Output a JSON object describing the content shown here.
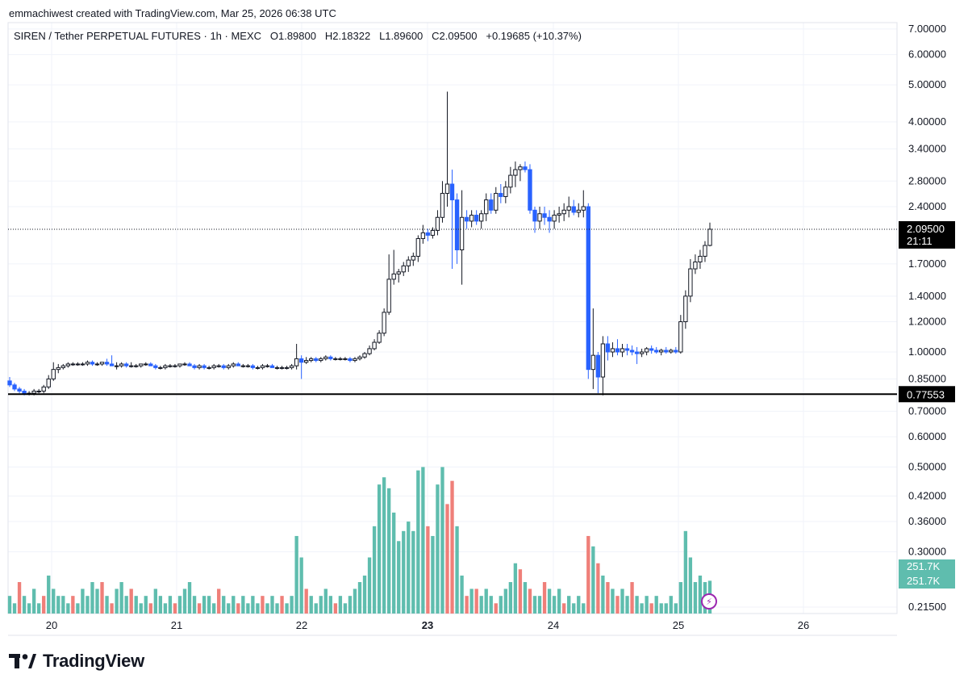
{
  "credit": "emmachiwest created with TradingView.com, Mar 25, 2026 06:38 UTC",
  "legend": {
    "symbol": "SIREN / Tether PERPETUAL FUTURES · 1h · MEXC",
    "open": "O1.89800",
    "high": "H2.18322",
    "low": "L1.89600",
    "close": "C2.09500",
    "change": "+0.19685 (+10.37%)"
  },
  "brand": {
    "name": "TradingView",
    "logo_icon": "tradingview-logo-icon"
  },
  "colors": {
    "up": "#ffffff",
    "up_border": "#131722",
    "down": "#2962ff",
    "vol_up": "#5fbdae",
    "vol_down": "#ef7f79"
  },
  "chart_data": {
    "type": "candlestick",
    "interval": "1h",
    "scale": "log",
    "price_ticks": [
      "7.00000",
      "6.00000",
      "5.00000",
      "4.00000",
      "3.40000",
      "2.80000",
      "2.40000",
      "1.70000",
      "1.40000",
      "1.20000",
      "1.00000",
      "0.85000",
      "0.70000",
      "0.60000",
      "0.50000",
      "0.42000",
      "0.36000",
      "0.30000",
      "0.21500"
    ],
    "x_ticks": [
      {
        "label": "20",
        "bold": false
      },
      {
        "label": "21",
        "bold": false
      },
      {
        "label": "22",
        "bold": false
      },
      {
        "label": "23",
        "bold": true
      },
      {
        "label": "24",
        "bold": false
      },
      {
        "label": "25",
        "bold": false
      },
      {
        "label": "26",
        "bold": false
      }
    ],
    "last_price": "2.09500",
    "countdown": "21:11",
    "horizontal_line": "0.77553",
    "volume_labels": [
      "251.7K",
      "251.7K"
    ],
    "ohlc_samples": [
      [
        0.84,
        0.86,
        0.81,
        0.82
      ],
      [
        0.82,
        0.83,
        0.79,
        0.8
      ],
      [
        0.8,
        0.81,
        0.78,
        0.79
      ],
      [
        0.79,
        0.8,
        0.77,
        0.78
      ],
      [
        0.78,
        0.79,
        0.77,
        0.78
      ],
      [
        0.78,
        0.8,
        0.77,
        0.79
      ],
      [
        0.79,
        0.8,
        0.78,
        0.79
      ],
      [
        0.79,
        0.82,
        0.78,
        0.81
      ],
      [
        0.81,
        0.87,
        0.8,
        0.85
      ],
      [
        0.85,
        0.94,
        0.84,
        0.9
      ],
      [
        0.9,
        0.93,
        0.88,
        0.91
      ],
      [
        0.91,
        0.93,
        0.9,
        0.92
      ],
      [
        0.92,
        0.94,
        0.91,
        0.93
      ],
      [
        0.93,
        0.94,
        0.92,
        0.93
      ],
      [
        0.93,
        0.94,
        0.92,
        0.93
      ],
      [
        0.93,
        0.94,
        0.92,
        0.93
      ],
      [
        0.93,
        0.95,
        0.92,
        0.94
      ],
      [
        0.94,
        0.95,
        0.92,
        0.93
      ],
      [
        0.93,
        0.94,
        0.92,
        0.93
      ],
      [
        0.93,
        0.94,
        0.92,
        0.94
      ],
      [
        0.94,
        0.96,
        0.92,
        0.93
      ],
      [
        0.93,
        0.98,
        0.92,
        0.92
      ],
      [
        0.92,
        0.94,
        0.9,
        0.92
      ],
      [
        0.92,
        0.94,
        0.91,
        0.93
      ],
      [
        0.93,
        0.94,
        0.91,
        0.92
      ],
      [
        0.92,
        0.94,
        0.91,
        0.92
      ],
      [
        0.92,
        0.93,
        0.91,
        0.92
      ],
      [
        0.92,
        0.93,
        0.91,
        0.93
      ],
      [
        0.93,
        0.94,
        0.92,
        0.93
      ],
      [
        0.93,
        0.94,
        0.92,
        0.92
      ],
      [
        0.92,
        0.93,
        0.9,
        0.91
      ],
      [
        0.91,
        0.92,
        0.9,
        0.91
      ],
      [
        0.91,
        0.93,
        0.9,
        0.92
      ],
      [
        0.92,
        0.93,
        0.91,
        0.92
      ],
      [
        0.92,
        0.93,
        0.91,
        0.92
      ],
      [
        0.92,
        0.93,
        0.91,
        0.93
      ],
      [
        0.93,
        0.94,
        0.92,
        0.93
      ],
      [
        0.93,
        0.94,
        0.92,
        0.92
      ],
      [
        0.92,
        0.93,
        0.9,
        0.91
      ],
      [
        0.91,
        0.93,
        0.9,
        0.92
      ],
      [
        0.92,
        0.93,
        0.9,
        0.91
      ],
      [
        0.91,
        0.92,
        0.9,
        0.91
      ],
      [
        0.91,
        0.93,
        0.9,
        0.92
      ],
      [
        0.92,
        0.93,
        0.91,
        0.92
      ],
      [
        0.92,
        0.93,
        0.9,
        0.91
      ],
      [
        0.91,
        0.93,
        0.9,
        0.92
      ],
      [
        0.92,
        0.94,
        0.91,
        0.93
      ],
      [
        0.93,
        0.94,
        0.92,
        0.92
      ],
      [
        0.92,
        0.93,
        0.91,
        0.92
      ],
      [
        0.92,
        0.93,
        0.91,
        0.92
      ],
      [
        0.92,
        0.93,
        0.9,
        0.91
      ],
      [
        0.91,
        0.92,
        0.9,
        0.91
      ],
      [
        0.91,
        0.93,
        0.9,
        0.92
      ],
      [
        0.92,
        0.93,
        0.91,
        0.92
      ],
      [
        0.92,
        0.93,
        0.91,
        0.91
      ],
      [
        0.91,
        0.92,
        0.9,
        0.91
      ],
      [
        0.91,
        0.92,
        0.9,
        0.91
      ],
      [
        0.91,
        0.92,
        0.9,
        0.91
      ],
      [
        0.91,
        0.93,
        0.9,
        0.92
      ],
      [
        0.92,
        1.05,
        0.9,
        0.96
      ],
      [
        0.96,
        0.98,
        0.85,
        0.94
      ],
      [
        0.94,
        0.97,
        0.93,
        0.95
      ],
      [
        0.95,
        0.97,
        0.94,
        0.96
      ],
      [
        0.96,
        0.97,
        0.94,
        0.95
      ],
      [
        0.95,
        0.97,
        0.94,
        0.96
      ],
      [
        0.96,
        0.98,
        0.95,
        0.97
      ],
      [
        0.97,
        0.98,
        0.95,
        0.96
      ],
      [
        0.96,
        0.97,
        0.95,
        0.96
      ],
      [
        0.96,
        0.97,
        0.95,
        0.96
      ],
      [
        0.96,
        0.97,
        0.95,
        0.96
      ],
      [
        0.96,
        0.97,
        0.94,
        0.95
      ],
      [
        0.95,
        0.97,
        0.94,
        0.96
      ],
      [
        0.96,
        0.98,
        0.95,
        0.97
      ],
      [
        0.97,
        1.0,
        0.96,
        0.99
      ],
      [
        0.99,
        1.04,
        0.98,
        1.02
      ],
      [
        1.02,
        1.08,
        1.01,
        1.06
      ],
      [
        1.06,
        1.14,
        1.05,
        1.12
      ],
      [
        1.12,
        1.3,
        1.1,
        1.27
      ],
      [
        1.27,
        1.8,
        1.25,
        1.55
      ],
      [
        1.55,
        1.85,
        1.5,
        1.6
      ],
      [
        1.6,
        1.65,
        1.52,
        1.62
      ],
      [
        1.62,
        1.72,
        1.58,
        1.68
      ],
      [
        1.68,
        1.78,
        1.62,
        1.74
      ],
      [
        1.74,
        1.82,
        1.68,
        1.78
      ],
      [
        1.78,
        2.02,
        1.72,
        1.98
      ],
      [
        1.98,
        2.15,
        1.92,
        2.05
      ],
      [
        2.05,
        2.1,
        1.95,
        2.02
      ],
      [
        2.02,
        2.12,
        1.98,
        2.08
      ],
      [
        2.08,
        2.35,
        2.02,
        2.25
      ],
      [
        2.25,
        2.8,
        2.18,
        2.6
      ],
      [
        2.6,
        4.8,
        2.4,
        2.75
      ],
      [
        2.75,
        3.0,
        1.65,
        2.5
      ],
      [
        2.5,
        2.6,
        1.7,
        1.85
      ],
      [
        1.85,
        2.65,
        1.5,
        2.25
      ],
      [
        2.25,
        2.35,
        2.1,
        2.2
      ],
      [
        2.2,
        2.35,
        2.12,
        2.28
      ],
      [
        2.28,
        2.35,
        2.15,
        2.2
      ],
      [
        2.2,
        2.35,
        2.1,
        2.3
      ],
      [
        2.3,
        2.6,
        2.2,
        2.5
      ],
      [
        2.5,
        2.6,
        2.3,
        2.35
      ],
      [
        2.35,
        2.7,
        2.3,
        2.6
      ],
      [
        2.6,
        2.75,
        2.45,
        2.55
      ],
      [
        2.55,
        2.8,
        2.45,
        2.7
      ],
      [
        2.7,
        3.05,
        2.6,
        2.9
      ],
      [
        2.9,
        3.15,
        2.7,
        3.0
      ],
      [
        3.0,
        3.1,
        2.8,
        3.05
      ],
      [
        3.05,
        3.15,
        2.95,
        3.0
      ],
      [
        3.0,
        3.1,
        2.3,
        2.35
      ],
      [
        2.35,
        2.4,
        2.05,
        2.2
      ],
      [
        2.2,
        2.4,
        2.1,
        2.3
      ],
      [
        2.3,
        2.4,
        2.15,
        2.25
      ],
      [
        2.25,
        2.35,
        2.05,
        2.2
      ],
      [
        2.2,
        2.35,
        2.1,
        2.28
      ],
      [
        2.28,
        2.4,
        2.18,
        2.3
      ],
      [
        2.3,
        2.45,
        2.2,
        2.35
      ],
      [
        2.35,
        2.55,
        2.25,
        2.4
      ],
      [
        2.4,
        2.5,
        2.28,
        2.32
      ],
      [
        2.32,
        2.45,
        2.25,
        2.35
      ],
      [
        2.35,
        2.65,
        2.25,
        2.4
      ],
      [
        2.4,
        2.45,
        0.85,
        0.9
      ],
      [
        0.9,
        1.3,
        0.8,
        0.98
      ],
      [
        0.98,
        1.0,
        0.78,
        0.86
      ],
      [
        0.86,
        1.1,
        0.77,
        1.05
      ],
      [
        1.05,
        1.1,
        0.95,
        1.0
      ],
      [
        1.0,
        1.06,
        0.97,
        1.02
      ],
      [
        1.02,
        1.08,
        0.98,
        1.0
      ],
      [
        1.0,
        1.05,
        0.97,
        1.02
      ],
      [
        1.02,
        1.05,
        0.98,
        1.01
      ],
      [
        1.01,
        1.04,
        0.98,
        1.0
      ],
      [
        1.0,
        1.03,
        0.93,
        0.99
      ],
      [
        0.99,
        1.02,
        0.97,
        1.0
      ],
      [
        1.0,
        1.03,
        0.98,
        1.02
      ],
      [
        1.02,
        1.04,
        0.99,
        1.01
      ],
      [
        1.01,
        1.03,
        0.99,
        1.0
      ],
      [
        1.0,
        1.02,
        0.98,
        1.01
      ],
      [
        1.01,
        1.03,
        0.99,
        1.0
      ],
      [
        1.0,
        1.02,
        0.99,
        1.01
      ],
      [
        1.01,
        1.03,
        0.99,
        1.0
      ],
      [
        1.0,
        1.25,
        0.99,
        1.2
      ],
      [
        1.2,
        1.45,
        1.15,
        1.4
      ],
      [
        1.4,
        1.75,
        1.35,
        1.65
      ],
      [
        1.65,
        1.8,
        1.6,
        1.72
      ],
      [
        1.72,
        1.85,
        1.65,
        1.78
      ],
      [
        1.78,
        1.95,
        1.72,
        1.9
      ],
      [
        1.9,
        2.18,
        1.89,
        2.095
      ]
    ],
    "volume_samples": [
      [
        0.23,
        1
      ],
      [
        0.22,
        1
      ],
      [
        0.25,
        0
      ],
      [
        0.23,
        1
      ],
      [
        0.22,
        1
      ],
      [
        0.24,
        1
      ],
      [
        0.22,
        1
      ],
      [
        0.23,
        0
      ],
      [
        0.26,
        1
      ],
      [
        0.24,
        1
      ],
      [
        0.23,
        1
      ],
      [
        0.23,
        1
      ],
      [
        0.22,
        1
      ],
      [
        0.23,
        0
      ],
      [
        0.22,
        1
      ],
      [
        0.24,
        1
      ],
      [
        0.23,
        1
      ],
      [
        0.25,
        1
      ],
      [
        0.24,
        1
      ],
      [
        0.25,
        0
      ],
      [
        0.23,
        1
      ],
      [
        0.22,
        0
      ],
      [
        0.24,
        1
      ],
      [
        0.25,
        1
      ],
      [
        0.23,
        1
      ],
      [
        0.24,
        0
      ],
      [
        0.23,
        1
      ],
      [
        0.22,
        1
      ],
      [
        0.23,
        1
      ],
      [
        0.22,
        0
      ],
      [
        0.24,
        1
      ],
      [
        0.23,
        1
      ],
      [
        0.22,
        1
      ],
      [
        0.23,
        1
      ],
      [
        0.22,
        0
      ],
      [
        0.23,
        1
      ],
      [
        0.24,
        1
      ],
      [
        0.25,
        1
      ],
      [
        0.23,
        1
      ],
      [
        0.22,
        0
      ],
      [
        0.23,
        1
      ],
      [
        0.23,
        1
      ],
      [
        0.22,
        1
      ],
      [
        0.24,
        0
      ],
      [
        0.23,
        1
      ],
      [
        0.22,
        1
      ],
      [
        0.23,
        1
      ],
      [
        0.22,
        0
      ],
      [
        0.23,
        1
      ],
      [
        0.22,
        1
      ],
      [
        0.23,
        1
      ],
      [
        0.22,
        1
      ],
      [
        0.23,
        0
      ],
      [
        0.22,
        1
      ],
      [
        0.23,
        1
      ],
      [
        0.22,
        1
      ],
      [
        0.23,
        0
      ],
      [
        0.22,
        1
      ],
      [
        0.23,
        1
      ],
      [
        0.33,
        1
      ],
      [
        0.29,
        1
      ],
      [
        0.24,
        0
      ],
      [
        0.23,
        1
      ],
      [
        0.22,
        1
      ],
      [
        0.23,
        1
      ],
      [
        0.24,
        1
      ],
      [
        0.23,
        1
      ],
      [
        0.22,
        0
      ],
      [
        0.23,
        1
      ],
      [
        0.22,
        1
      ],
      [
        0.23,
        1
      ],
      [
        0.24,
        1
      ],
      [
        0.25,
        1
      ],
      [
        0.26,
        1
      ],
      [
        0.29,
        1
      ],
      [
        0.35,
        1
      ],
      [
        0.45,
        1
      ],
      [
        0.47,
        1
      ],
      [
        0.44,
        1
      ],
      [
        0.38,
        1
      ],
      [
        0.32,
        1
      ],
      [
        0.34,
        1
      ],
      [
        0.36,
        1
      ],
      [
        0.34,
        1
      ],
      [
        0.49,
        1
      ],
      [
        0.5,
        1
      ],
      [
        0.35,
        0
      ],
      [
        0.33,
        1
      ],
      [
        0.45,
        1
      ],
      [
        0.5,
        1
      ],
      [
        0.4,
        0
      ],
      [
        0.46,
        0
      ],
      [
        0.35,
        1
      ],
      [
        0.26,
        1
      ],
      [
        0.23,
        0
      ],
      [
        0.24,
        1
      ],
      [
        0.24,
        0
      ],
      [
        0.23,
        1
      ],
      [
        0.24,
        1
      ],
      [
        0.23,
        1
      ],
      [
        0.22,
        0
      ],
      [
        0.23,
        1
      ],
      [
        0.24,
        1
      ],
      [
        0.25,
        1
      ],
      [
        0.28,
        1
      ],
      [
        0.27,
        0
      ],
      [
        0.25,
        1
      ],
      [
        0.24,
        0
      ],
      [
        0.23,
        1
      ],
      [
        0.23,
        1
      ],
      [
        0.25,
        0
      ],
      [
        0.24,
        1
      ],
      [
        0.23,
        1
      ],
      [
        0.24,
        1
      ],
      [
        0.22,
        0
      ],
      [
        0.23,
        1
      ],
      [
        0.22,
        1
      ],
      [
        0.23,
        1
      ],
      [
        0.22,
        1
      ],
      [
        0.33,
        0
      ],
      [
        0.31,
        1
      ],
      [
        0.28,
        0
      ],
      [
        0.26,
        1
      ],
      [
        0.25,
        0
      ],
      [
        0.24,
        1
      ],
      [
        0.23,
        0
      ],
      [
        0.24,
        1
      ],
      [
        0.23,
        1
      ],
      [
        0.25,
        0
      ],
      [
        0.23,
        1
      ],
      [
        0.22,
        1
      ],
      [
        0.23,
        1
      ],
      [
        0.22,
        0
      ],
      [
        0.23,
        1
      ],
      [
        0.22,
        1
      ],
      [
        0.22,
        1
      ],
      [
        0.23,
        1
      ],
      [
        0.22,
        1
      ],
      [
        0.25,
        1
      ],
      [
        0.34,
        1
      ],
      [
        0.29,
        1
      ],
      [
        0.25,
        1
      ],
      [
        0.26,
        1
      ],
      [
        0.25,
        1
      ],
      [
        0.252,
        1
      ]
    ]
  }
}
